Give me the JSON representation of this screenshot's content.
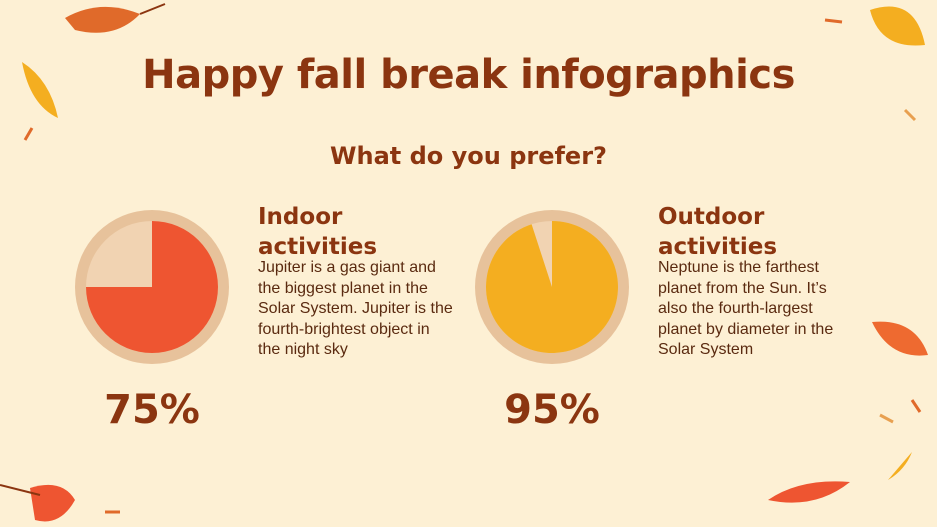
{
  "title": "Happy fall break infographics",
  "subtitle": "What do you prefer?",
  "chart_data": [
    {
      "type": "pie",
      "title": "Indoor activities",
      "description": "Jupiter is a gas giant and the biggest planet in the Solar System. Jupiter is the fourth-brightest object in the night sky",
      "values": [
        75
      ],
      "value_labels": [
        "75%"
      ],
      "color": "#ee5531"
    },
    {
      "type": "pie",
      "title": "Outdoor activities",
      "description": "Neptune is the farthest planet from the Sun. It’s also the fourth-largest planet by diameter in the Solar System",
      "values": [
        95
      ],
      "value_labels": [
        "95%"
      ],
      "color": "#f4ae20"
    }
  ]
}
